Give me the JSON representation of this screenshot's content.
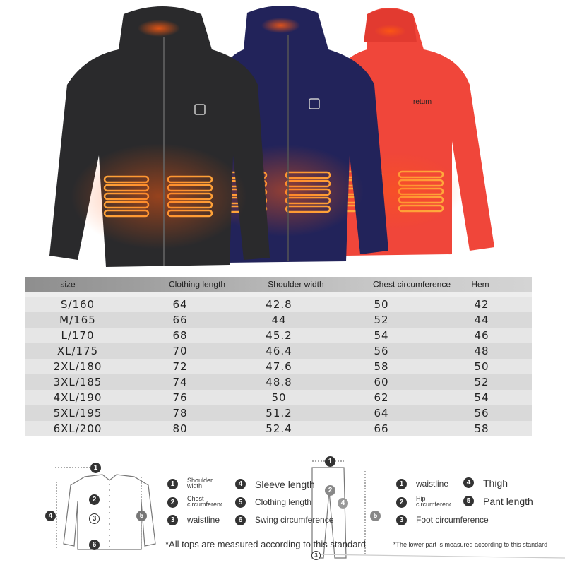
{
  "jackets": [
    {
      "color": "black",
      "hex": "#2a2a2c"
    },
    {
      "color": "navy",
      "hex": "#22235a"
    },
    {
      "color": "red",
      "hex": "#f0463a"
    }
  ],
  "glow_color": "#ff6a1a",
  "overlay_text": "return",
  "table": {
    "headers": [
      "size",
      "Clothing length",
      "Shoulder width",
      "Chest circumference",
      "Hem"
    ],
    "rows": [
      [
        "S/160",
        "64",
        "42.8",
        "50",
        "42"
      ],
      [
        "M/165",
        "66",
        "44",
        "52",
        "44"
      ],
      [
        "L/170",
        "68",
        "45.2",
        "54",
        "46"
      ],
      [
        "XL/175",
        "70",
        "46.4",
        "56",
        "48"
      ],
      [
        "2XL/180",
        "72",
        "47.6",
        "58",
        "50"
      ],
      [
        "3XL/185",
        "74",
        "48.8",
        "60",
        "52"
      ],
      [
        "4XL/190",
        "76",
        "50",
        "62",
        "54"
      ],
      [
        "5XL/195",
        "78",
        "51.2",
        "64",
        "56"
      ],
      [
        "6XL/200",
        "80",
        "52.4",
        "66",
        "58"
      ]
    ]
  },
  "tops_legend": {
    "items": [
      {
        "n": "1",
        "label": "Shoulder width"
      },
      {
        "n": "2",
        "label": "Chest circumference"
      },
      {
        "n": "3",
        "label": "waistline"
      },
      {
        "n": "4",
        "label": "Sleeve length"
      },
      {
        "n": "5",
        "label": "Clothing length"
      },
      {
        "n": "6",
        "label": "Swing circumference"
      }
    ],
    "note": "*All tops are measured according to this standard"
  },
  "pants_legend": {
    "items": [
      {
        "n": "1",
        "label": "waistline"
      },
      {
        "n": "2",
        "label": "Hip circumference"
      },
      {
        "n": "3",
        "label": "Foot circumference"
      },
      {
        "n": "4",
        "label": "Thigh"
      },
      {
        "n": "5",
        "label": "Pant length"
      }
    ],
    "note": "*The lower part is measured according to this standard"
  },
  "shirt_markers": [
    "1",
    "2",
    "3",
    "4",
    "5",
    "6"
  ],
  "pants_markers": [
    "1",
    "2",
    "3",
    "4",
    "5"
  ]
}
